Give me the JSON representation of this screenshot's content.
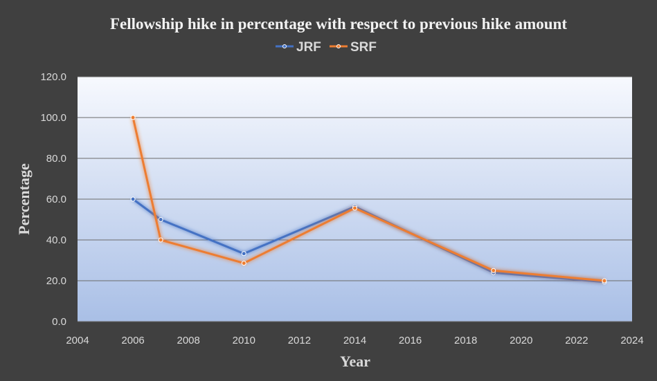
{
  "chart_data": {
    "type": "line",
    "title": "Fellowship hike in percentage with respect to previous hike amount",
    "xlabel": "Year",
    "ylabel": "Percentage",
    "xlim": [
      2004,
      2024
    ],
    "ylim": [
      0,
      120
    ],
    "x_ticks": [
      2004,
      2006,
      2008,
      2010,
      2012,
      2014,
      2016,
      2018,
      2020,
      2022,
      2024
    ],
    "y_ticks": [
      "0.0",
      "20.0",
      "40.0",
      "60.0",
      "80.0",
      "100.0",
      "120.0"
    ],
    "grid": "horizontal",
    "legend_position": "top",
    "series": [
      {
        "name": "JRF",
        "color": "#4472C4",
        "x": [
          2006,
          2007,
          2010,
          2014,
          2019,
          2023
        ],
        "values": [
          60.0,
          50.0,
          33.3,
          56.3,
          24.0,
          19.4
        ]
      },
      {
        "name": "SRF",
        "color": "#ED7D31",
        "x": [
          2006,
          2007,
          2010,
          2014,
          2019,
          2023
        ],
        "values": [
          100.0,
          40.0,
          28.6,
          55.6,
          25.0,
          20.0
        ]
      }
    ]
  }
}
